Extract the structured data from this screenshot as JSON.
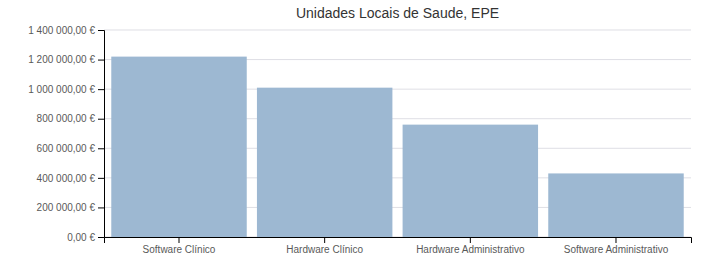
{
  "chart_data": {
    "type": "bar",
    "title": "Unidades Locais de Saude, EPE",
    "categories": [
      "Software Clínico",
      "Hardware Clínico",
      "Hardware Administrativo",
      "Software Administrativo"
    ],
    "values": [
      1220000,
      1010000,
      760000,
      430000
    ],
    "color": "#9db8d2",
    "ylim": [
      0,
      1400000
    ],
    "yticks": [
      {
        "value": 0,
        "label": "0,00 €"
      },
      {
        "value": 200000,
        "label": "200 000,00 €"
      },
      {
        "value": 400000,
        "label": "400 000,00 €"
      },
      {
        "value": 600000,
        "label": "600 000,00 €"
      },
      {
        "value": 800000,
        "label": "800 000,00 €"
      },
      {
        "value": 1000000,
        "label": "1 000 000,00 €"
      },
      {
        "value": 1200000,
        "label": "1 200 000,00 €"
      },
      {
        "value": 1400000,
        "label": "1 400 000,00 €"
      }
    ],
    "grid": true
  }
}
